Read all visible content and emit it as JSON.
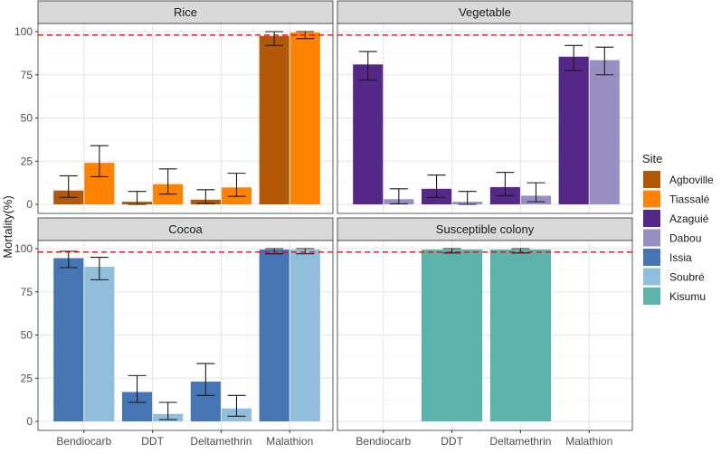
{
  "chart_data": {
    "type": "bar",
    "ylabel": "Mortality(%)",
    "ylim": [
      0,
      105
    ],
    "yticks": [
      0,
      25,
      50,
      75,
      100
    ],
    "reference_line": {
      "value": 98,
      "color": "#FF0000",
      "style": "dashed"
    },
    "categories": [
      "Bendiocarb",
      "DDT",
      "Deltamethrin",
      "Malathion"
    ],
    "legend": {
      "title": "Site",
      "placement": "right",
      "entries": [
        {
          "name": "Agboville",
          "color": "#B35806"
        },
        {
          "name": "Tiassalé",
          "color": "#FF8200"
        },
        {
          "name": "Azaguié",
          "color": "#542788"
        },
        {
          "name": "Dabou",
          "color": "#998EC3"
        },
        {
          "name": "Issia",
          "color": "#4575B4"
        },
        {
          "name": "Soubré",
          "color": "#91BFDB"
        },
        {
          "name": "Kisumu",
          "color": "#5AB4AC"
        }
      ]
    },
    "panels": [
      {
        "title": "Rice",
        "series": [
          {
            "name": "Agboville",
            "values": [
              8,
              1.5,
              2.7,
              97.5
            ],
            "ci_low": [
              4,
              0,
              0.5,
              92
            ],
            "ci_high": [
              16.5,
              7.5,
              8.5,
              100
            ]
          },
          {
            "name": "Tiassalé",
            "values": [
              24,
              11.7,
              9.8,
              99.5
            ],
            "ci_low": [
              16,
              6,
              4.6,
              96
            ],
            "ci_high": [
              34,
              20.5,
              18,
              100
            ]
          }
        ]
      },
      {
        "title": "Vegetable",
        "series": [
          {
            "name": "Azaguié",
            "values": [
              81,
              9,
              10,
              85.5
            ],
            "ci_low": [
              72,
              4,
              5,
              77.5
            ],
            "ci_high": [
              88.5,
              17,
              18.5,
              92
            ]
          },
          {
            "name": "Dabou",
            "values": [
              3,
              1.5,
              5,
              83.5
            ],
            "ci_low": [
              0.3,
              0,
              1.5,
              75
            ],
            "ci_high": [
              9,
              7.5,
              12.5,
              91
            ]
          }
        ]
      },
      {
        "title": "Cocoa",
        "series": [
          {
            "name": "Issia",
            "values": [
              94.5,
              17,
              23,
              99.5
            ],
            "ci_low": [
              89,
              11,
              15,
              97
            ],
            "ci_high": [
              98.5,
              26.5,
              33.5,
              100
            ]
          },
          {
            "name": "Soubré",
            "values": [
              89.5,
              4.3,
              7.5,
              99.5
            ],
            "ci_low": [
              82,
              1,
              3,
              97
            ],
            "ci_high": [
              95,
              11,
              15,
              100
            ]
          }
        ]
      },
      {
        "title": "Susceptible colony",
        "series": [
          {
            "name": "Kisumu",
            "values": [
              null,
              99.5,
              99.5,
              null
            ],
            "ci_low": [
              null,
              97.5,
              97.5,
              null
            ],
            "ci_high": [
              null,
              100,
              100,
              null
            ]
          }
        ]
      }
    ]
  }
}
